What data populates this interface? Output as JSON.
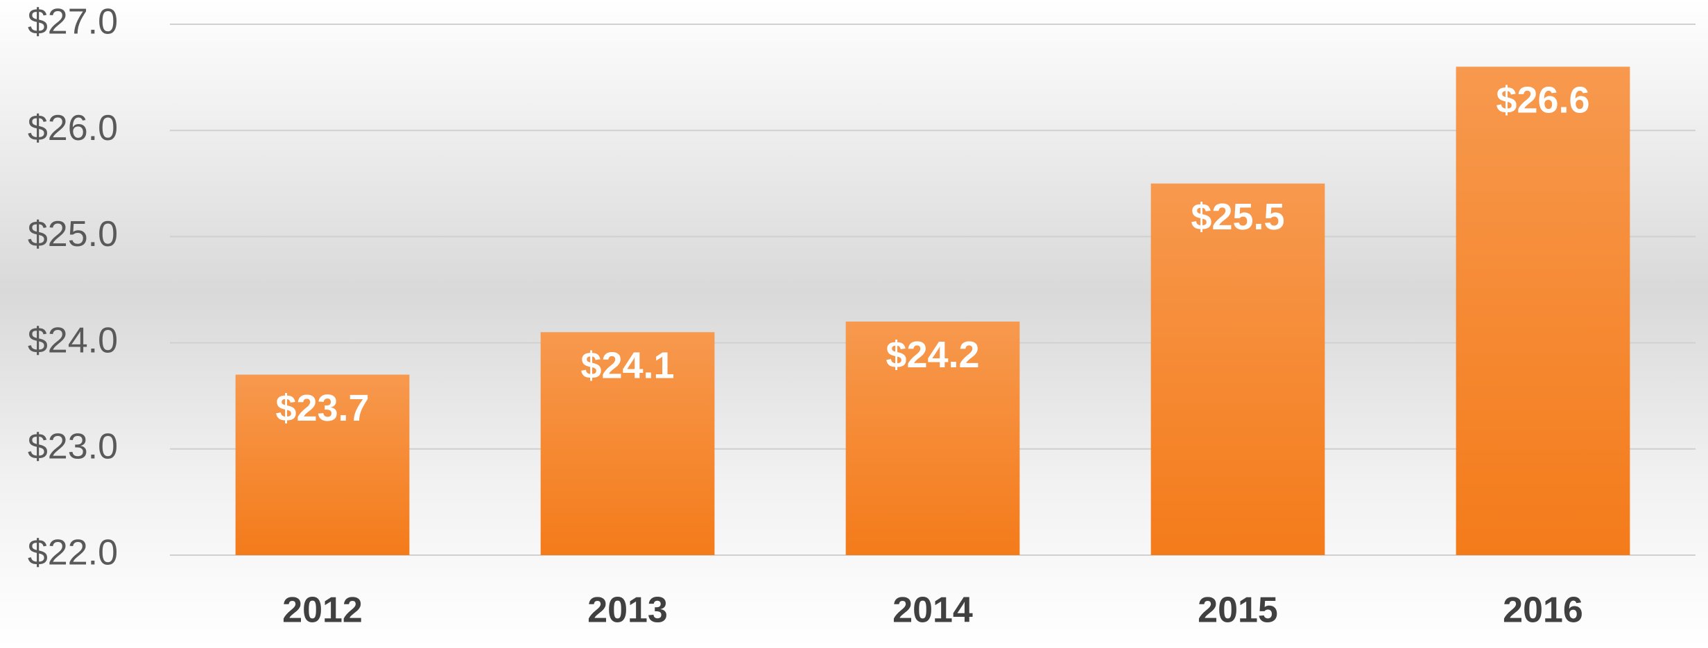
{
  "chart_data": {
    "type": "bar",
    "categories": [
      "2012",
      "2013",
      "2014",
      "2015",
      "2016"
    ],
    "values": [
      23.7,
      24.1,
      24.2,
      25.5,
      26.6
    ],
    "value_labels": [
      "$23.7",
      "$24.1",
      "$24.2",
      "$25.5",
      "$26.6"
    ],
    "color": "#f58025",
    "ylim": [
      22,
      27
    ],
    "yticks": [
      {
        "value": 22,
        "label": "$22.0"
      },
      {
        "value": 23,
        "label": "$23.0"
      },
      {
        "value": 24,
        "label": "$24.0"
      },
      {
        "value": 25,
        "label": "$25.0"
      },
      {
        "value": 26,
        "label": "$26.0"
      },
      {
        "value": 27,
        "label": "$27.0"
      }
    ],
    "grid": true
  }
}
